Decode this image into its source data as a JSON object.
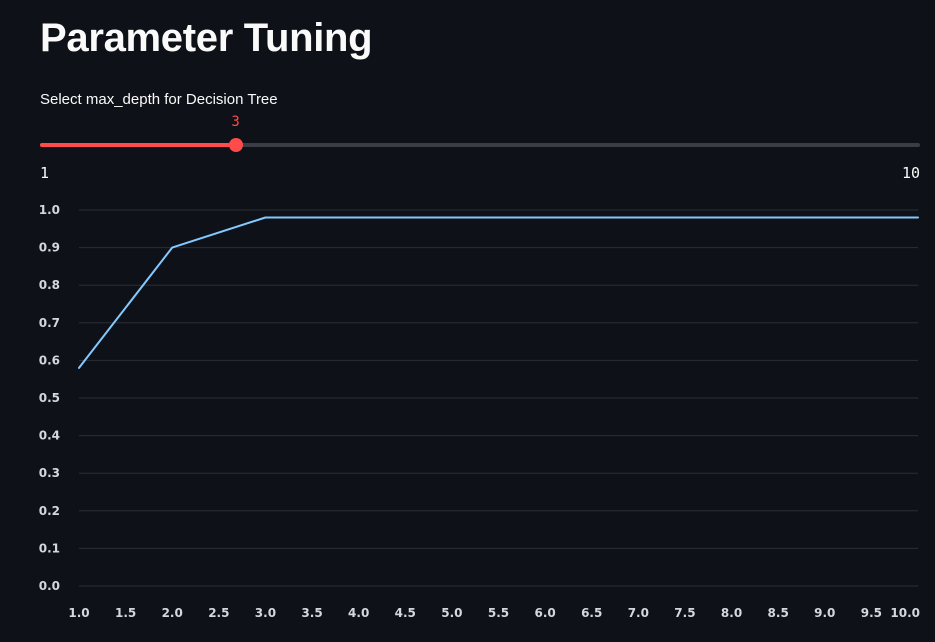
{
  "page": {
    "title": "Parameter Tuning"
  },
  "slider": {
    "label": "Select max_depth for Decision Tree",
    "value": 3,
    "min": 1,
    "max": 10,
    "value_text": "3",
    "min_text": "1",
    "max_text": "10",
    "accent_color": "#ff4b4b",
    "track_color": "#3b3d45"
  },
  "chart_data": {
    "type": "line",
    "x": [
      1,
      2,
      3,
      4,
      5,
      6,
      7,
      8,
      9,
      10
    ],
    "series": [
      {
        "values": [
          0.58,
          0.9,
          0.98,
          0.98,
          0.98,
          0.98,
          0.98,
          0.98,
          0.98,
          0.98
        ],
        "color": "#83c9ff"
      }
    ],
    "xlim": [
      1,
      10
    ],
    "ylim": [
      0,
      1
    ],
    "xticks": [
      "1.0",
      "1.5",
      "2.0",
      "2.5",
      "3.0",
      "3.5",
      "4.0",
      "4.5",
      "5.0",
      "5.5",
      "6.0",
      "6.5",
      "7.0",
      "7.5",
      "8.0",
      "8.5",
      "9.0",
      "9.5",
      "10.0"
    ],
    "yticks": [
      "0.0",
      "0.1",
      "0.2",
      "0.3",
      "0.4",
      "0.5",
      "0.6",
      "0.7",
      "0.8",
      "0.9",
      "1.0"
    ],
    "grid": true,
    "legend": "none",
    "title": "",
    "xlabel": "",
    "ylabel": ""
  }
}
